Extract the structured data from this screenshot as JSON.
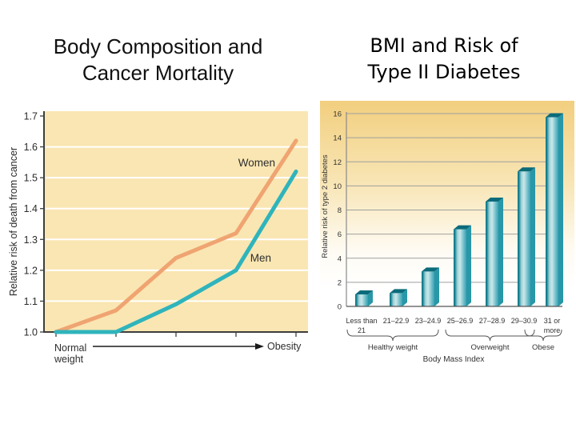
{
  "slide": {
    "left_title": "Body Composition and\nCancer Mortality",
    "right_title": "BMI and Risk of\nType II Diabetes"
  },
  "chart_data": [
    {
      "type": "line",
      "title": "Body Composition and Cancer Mortality",
      "ylabel": "Relative risk of death from cancer",
      "ylim": [
        1.0,
        1.7
      ],
      "yticks": [
        1.0,
        1.1,
        1.2,
        1.3,
        1.4,
        1.5,
        1.6,
        1.7
      ],
      "x_tick_count": 5,
      "grid": true,
      "plot_bg": "#FAE6B2",
      "axis_color": "#3E3E3E",
      "x_axis": {
        "left_label": "Normal weight",
        "right_label": "Obesity",
        "arrow": true
      },
      "series": [
        {
          "name": "Women",
          "color": "#EFA471",
          "x": [
            0,
            0.25,
            0.5,
            0.75,
            1.0
          ],
          "values": [
            1.0,
            1.07,
            1.24,
            1.32,
            1.62
          ]
        },
        {
          "name": "Men",
          "color": "#2FB4BC",
          "x": [
            0,
            0.25,
            0.5,
            0.75,
            1.0
          ],
          "values": [
            1.0,
            1.0,
            1.09,
            1.2,
            1.52
          ]
        }
      ]
    },
    {
      "type": "bar",
      "title": "BMI and Risk of Type II Diabetes",
      "ylabel": "Relative risk of type 2 diabetes",
      "xlabel": "Body Mass Index",
      "ylim": [
        0,
        16
      ],
      "yticks": [
        0,
        2,
        4,
        6,
        8,
        10,
        12,
        14,
        16
      ],
      "grid": true,
      "categories": [
        "Less than 21",
        "21–22.9",
        "23–24.9",
        "25–26.9",
        "27–28.9",
        "29–30.9",
        "31 or more"
      ],
      "values": [
        1.0,
        1.1,
        2.9,
        6.4,
        8.7,
        11.2,
        15.7
      ],
      "groups": [
        {
          "label": "Healthy weight",
          "from": 0,
          "to": 2
        },
        {
          "label": "Overweight",
          "from": 3,
          "to": 5
        },
        {
          "label": "Obese",
          "from": 6,
          "to": 6
        }
      ],
      "bar_color": "#2EA8B8",
      "bar_edge_dark": "#0E7181",
      "bar_face_light": "#C9E7EA",
      "bar_side": "#2897A8",
      "bar_top": "#0C6B7A",
      "bg_gradient_top": "#F2CF7F",
      "bg_gradient_bottom": "#FFFFFF",
      "gridline_color": "#9F9F9F"
    }
  ]
}
